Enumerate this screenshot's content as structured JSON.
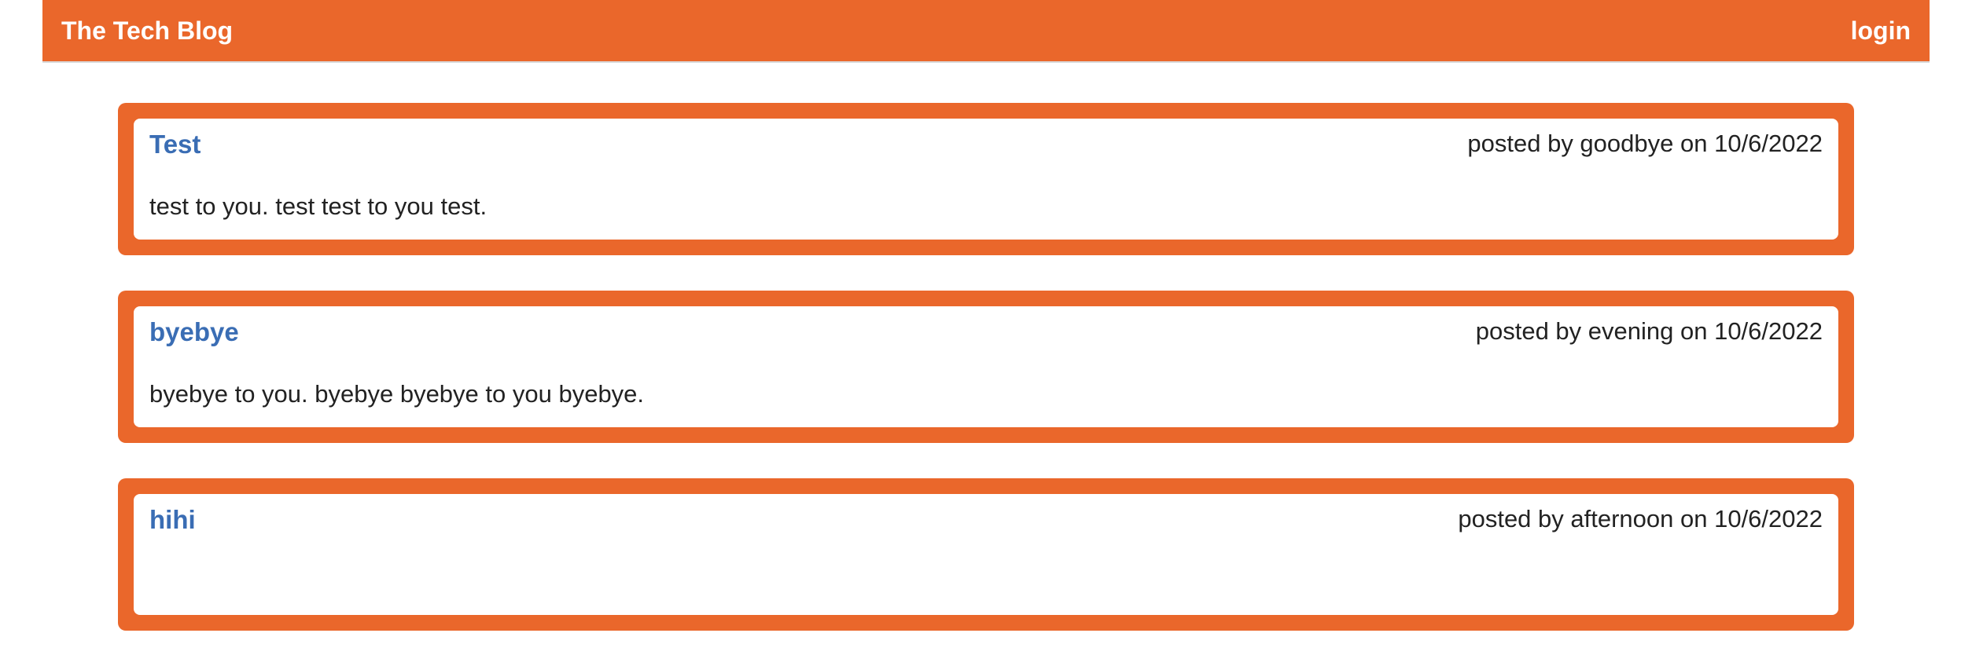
{
  "navbar": {
    "brand": "The Tech Blog",
    "login_label": "login"
  },
  "posts": [
    {
      "title": "Test",
      "meta": "posted by goodbye on 10/6/2022",
      "body": "test to you. test test to you test."
    },
    {
      "title": "byebye",
      "meta": "posted by evening on 10/6/2022",
      "body": "byebye to you. byebye byebye to you byebye."
    },
    {
      "title": "hihi",
      "meta": "posted by afternoon on 10/6/2022",
      "body": ""
    }
  ],
  "colors": {
    "brand": "#ea672b",
    "title_link": "#3a6db4",
    "text": "#222222"
  }
}
